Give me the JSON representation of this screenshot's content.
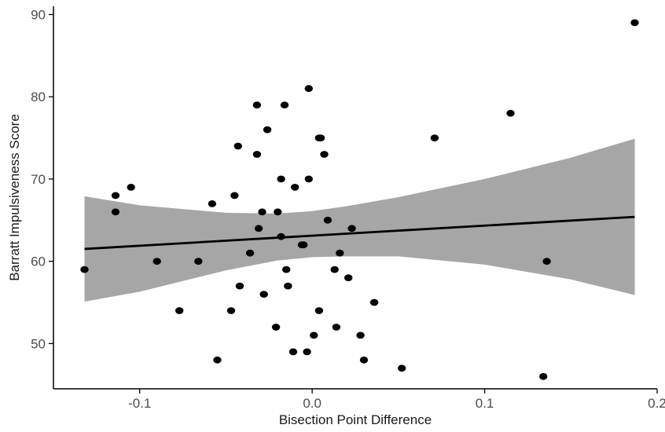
{
  "chart_data": {
    "type": "scatter",
    "title": "",
    "xlabel": "Bisection Point Difference",
    "ylabel": "Barratt Impulsiveness Score",
    "xlim": [
      -0.15,
      0.2
    ],
    "ylim": [
      44.5,
      91
    ],
    "xticks": [
      -0.1,
      0.0,
      0.1,
      0.2
    ],
    "xtick_labels": [
      "-0.1",
      "0.0",
      "0.1",
      "0.2"
    ],
    "yticks": [
      50,
      60,
      70,
      80,
      90
    ],
    "ytick_labels": [
      "50",
      "60",
      "70",
      "80",
      "90"
    ],
    "grid": false,
    "legend": "none",
    "points": [
      {
        "x": -0.132,
        "y": 59
      },
      {
        "x": -0.114,
        "y": 68
      },
      {
        "x": -0.114,
        "y": 66
      },
      {
        "x": -0.105,
        "y": 69
      },
      {
        "x": -0.09,
        "y": 60
      },
      {
        "x": -0.077,
        "y": 54
      },
      {
        "x": -0.066,
        "y": 60
      },
      {
        "x": -0.058,
        "y": 67
      },
      {
        "x": -0.055,
        "y": 48
      },
      {
        "x": -0.047,
        "y": 54
      },
      {
        "x": -0.045,
        "y": 68
      },
      {
        "x": -0.043,
        "y": 74
      },
      {
        "x": -0.042,
        "y": 57
      },
      {
        "x": -0.036,
        "y": 61
      },
      {
        "x": -0.032,
        "y": 79
      },
      {
        "x": -0.032,
        "y": 73
      },
      {
        "x": -0.031,
        "y": 64
      },
      {
        "x": -0.029,
        "y": 66
      },
      {
        "x": -0.028,
        "y": 56
      },
      {
        "x": -0.026,
        "y": 76
      },
      {
        "x": -0.021,
        "y": 52
      },
      {
        "x": -0.02,
        "y": 66
      },
      {
        "x": -0.018,
        "y": 63
      },
      {
        "x": -0.018,
        "y": 70
      },
      {
        "x": -0.016,
        "y": 79
      },
      {
        "x": -0.015,
        "y": 59
      },
      {
        "x": -0.014,
        "y": 57
      },
      {
        "x": -0.011,
        "y": 49
      },
      {
        "x": -0.01,
        "y": 69
      },
      {
        "x": -0.006,
        "y": 62
      },
      {
        "x": -0.005,
        "y": 62
      },
      {
        "x": -0.003,
        "y": 49
      },
      {
        "x": -0.002,
        "y": 81
      },
      {
        "x": -0.002,
        "y": 70
      },
      {
        "x": 0.001,
        "y": 51
      },
      {
        "x": 0.004,
        "y": 75
      },
      {
        "x": 0.005,
        "y": 75
      },
      {
        "x": 0.004,
        "y": 54
      },
      {
        "x": 0.007,
        "y": 73
      },
      {
        "x": 0.009,
        "y": 65
      },
      {
        "x": 0.013,
        "y": 59
      },
      {
        "x": 0.014,
        "y": 52
      },
      {
        "x": 0.016,
        "y": 61
      },
      {
        "x": 0.021,
        "y": 58
      },
      {
        "x": 0.023,
        "y": 64
      },
      {
        "x": 0.028,
        "y": 51
      },
      {
        "x": 0.03,
        "y": 48
      },
      {
        "x": 0.036,
        "y": 55
      },
      {
        "x": 0.052,
        "y": 47
      },
      {
        "x": 0.071,
        "y": 75
      },
      {
        "x": 0.115,
        "y": 78
      },
      {
        "x": 0.134,
        "y": 46
      },
      {
        "x": 0.136,
        "y": 60
      },
      {
        "x": 0.187,
        "y": 89
      }
    ],
    "fit_line": {
      "x": [
        -0.132,
        0.187
      ],
      "y": [
        61.5,
        65.4
      ]
    },
    "confidence_band": {
      "x": [
        -0.132,
        -0.1,
        -0.05,
        -0.02,
        0.0,
        0.02,
        0.05,
        0.1,
        0.15,
        0.187
      ],
      "upper": [
        67.9,
        66.8,
        65.9,
        65.8,
        66.1,
        66.7,
        67.8,
        70.0,
        72.6,
        74.9
      ],
      "lower": [
        55.1,
        56.3,
        58.9,
        60.1,
        60.5,
        60.6,
        60.6,
        59.6,
        57.8,
        55.9
      ]
    },
    "colors": {
      "points": "#000000",
      "fit_line": "#000000",
      "band": "#a6a6a6",
      "axis": "#000000",
      "tick_labels": "#4d4d4d"
    }
  }
}
